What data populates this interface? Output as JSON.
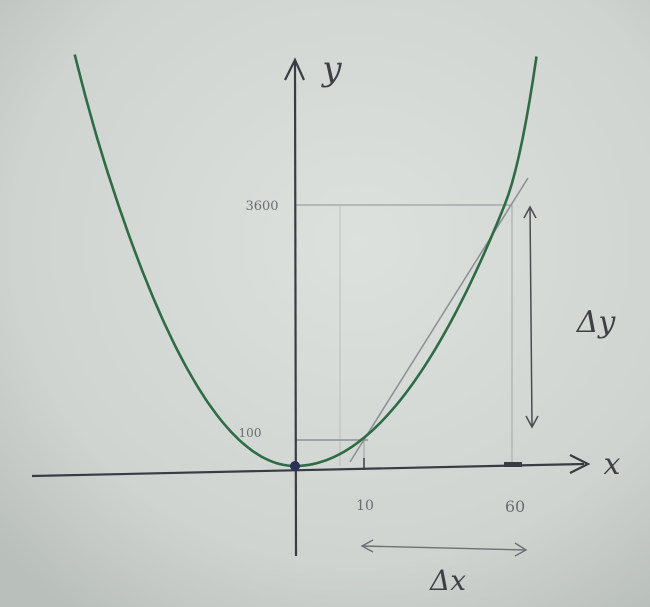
{
  "axes": {
    "x_label": "x",
    "y_label": "y"
  },
  "ticks": {
    "y_low": "100",
    "y_high": "3600",
    "x_low": "10",
    "x_high": "60"
  },
  "annotations": {
    "delta_y": "Δy",
    "delta_x": "Δx"
  },
  "colors": {
    "paper": "#d2d7d3",
    "curve": "#2f6b45",
    "axis": "#3a3c44",
    "pencil": "#8d9095"
  }
}
